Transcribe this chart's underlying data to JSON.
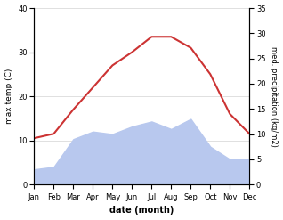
{
  "months": [
    "Jan",
    "Feb",
    "Mar",
    "Apr",
    "May",
    "Jun",
    "Jul",
    "Aug",
    "Sep",
    "Oct",
    "Nov",
    "Dec"
  ],
  "max_temp": [
    10.5,
    11.5,
    17.0,
    22.0,
    27.0,
    30.0,
    33.5,
    33.5,
    31.0,
    25.0,
    16.0,
    11.5
  ],
  "precipitation": [
    3.0,
    3.5,
    9.0,
    10.5,
    10.0,
    11.5,
    12.5,
    11.0,
    13.0,
    7.5,
    5.0,
    5.0
  ],
  "temp_color": "#cc3333",
  "precip_fill_color": "#b8c8ee",
  "temp_ylim": [
    0,
    40
  ],
  "precip_ylim": [
    0,
    35
  ],
  "temp_yticks": [
    0,
    10,
    20,
    30,
    40
  ],
  "precip_yticks": [
    0,
    5,
    10,
    15,
    20,
    25,
    30,
    35
  ],
  "ylabel_left": "max temp (C)",
  "ylabel_right": "med. precipitation (kg/m2)",
  "xlabel": "date (month)",
  "figsize": [
    3.18,
    2.47
  ],
  "dpi": 100
}
